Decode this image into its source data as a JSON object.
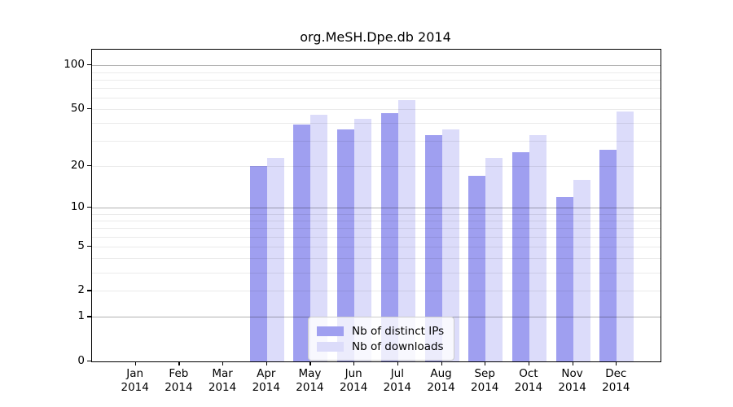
{
  "title": "org.MeSH.Dpe.db 2014",
  "chart_data": {
    "type": "bar",
    "title": "org.MeSH.Dpe.db 2014",
    "categories": [
      "Jan 2014",
      "Feb 2014",
      "Mar 2014",
      "Apr 2014",
      "May 2014",
      "Jun 2014",
      "Jul 2014",
      "Aug 2014",
      "Sep 2014",
      "Oct 2014",
      "Nov 2014",
      "Dec 2014"
    ],
    "month_labels": [
      {
        "month": "Jan",
        "year": "2014"
      },
      {
        "month": "Feb",
        "year": "2014"
      },
      {
        "month": "Mar",
        "year": "2014"
      },
      {
        "month": "Apr",
        "year": "2014"
      },
      {
        "month": "May",
        "year": "2014"
      },
      {
        "month": "Jun",
        "year": "2014"
      },
      {
        "month": "Jul",
        "year": "2014"
      },
      {
        "month": "Aug",
        "year": "2014"
      },
      {
        "month": "Sep",
        "year": "2014"
      },
      {
        "month": "Oct",
        "year": "2014"
      },
      {
        "month": "Nov",
        "year": "2014"
      },
      {
        "month": "Dec",
        "year": "2014"
      }
    ],
    "series": [
      {
        "name": "Nb of distinct IPs",
        "color": "#9f9ff0",
        "values": [
          null,
          null,
          null,
          20,
          39,
          36,
          47,
          33,
          17,
          25,
          12,
          26
        ]
      },
      {
        "name": "Nb of downloads",
        "color": "#dcdcfa",
        "values": [
          null,
          null,
          null,
          23,
          46,
          43,
          58,
          36,
          23,
          33,
          16,
          48
        ]
      }
    ],
    "y_scale": "log1p",
    "ylim": [
      0,
      128
    ],
    "y_ticks": [
      0,
      1,
      2,
      5,
      10,
      20,
      50,
      100
    ],
    "y_grid_minor": [
      2,
      3,
      4,
      5,
      6,
      7,
      8,
      9,
      20,
      30,
      40,
      50,
      60,
      70,
      80,
      90
    ],
    "y_grid_major": [
      1,
      10,
      100
    ],
    "xlabel": "",
    "ylabel": "",
    "grid": true,
    "legend_position": "bottom-center",
    "legend_entries": [
      "Nb of distinct IPs",
      "Nb of downloads"
    ]
  },
  "colors": {
    "distinct_ips": "#9f9ff0",
    "downloads": "#dcdcfa",
    "spine": "#000000",
    "grid_minor": "#ececec",
    "grid_major": "#b3b3b3",
    "legend_border": "#cccccc"
  }
}
